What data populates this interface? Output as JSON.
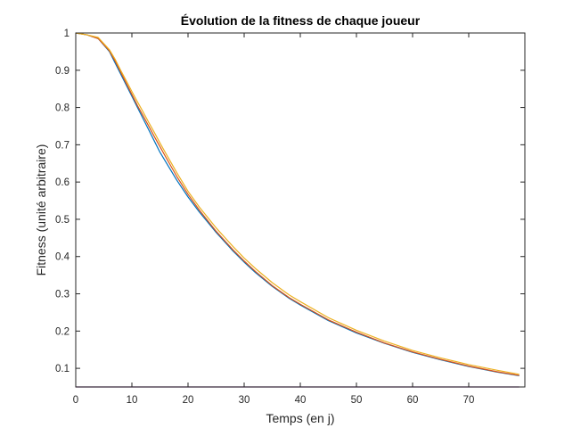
{
  "chart_data": {
    "type": "line",
    "title": "Évolution de la fitness de chaque joueur",
    "xlabel": "Temps (en j)",
    "ylabel": "Fitness (unité arbitraire)",
    "xlim": [
      0,
      80
    ],
    "ylim": [
      0.05,
      1
    ],
    "xticks": [
      "0",
      "10",
      "20",
      "30",
      "40",
      "50",
      "60",
      "70"
    ],
    "yticks": [
      "0.1",
      "0.2",
      "0.3",
      "0.4",
      "0.5",
      "0.6",
      "0.7",
      "0.8",
      "0.9",
      "1"
    ],
    "grid": false,
    "series": [
      {
        "color": "#0072BD",
        "x": [
          0,
          2,
          4,
          6,
          7,
          8,
          9,
          10,
          11,
          12,
          13,
          14,
          15,
          16,
          18,
          20,
          22,
          25,
          28,
          30,
          32,
          35,
          38,
          40,
          45,
          50,
          55,
          60,
          65,
          70,
          75,
          79
        ],
        "y": [
          1.0,
          0.995,
          0.985,
          0.95,
          0.92,
          0.89,
          0.86,
          0.83,
          0.8,
          0.77,
          0.74,
          0.71,
          0.68,
          0.655,
          0.605,
          0.56,
          0.52,
          0.465,
          0.415,
          0.385,
          0.357,
          0.32,
          0.288,
          0.27,
          0.228,
          0.195,
          0.167,
          0.143,
          0.123,
          0.105,
          0.09,
          0.08
        ]
      },
      {
        "color": "#D95319",
        "x": [
          0,
          2,
          4,
          6,
          7,
          8,
          9,
          10,
          11,
          12,
          13,
          14,
          15,
          16,
          18,
          20,
          22,
          25,
          28,
          30,
          32,
          35,
          38,
          40,
          45,
          50,
          55,
          60,
          65,
          70,
          75,
          79
        ],
        "y": [
          1.0,
          0.995,
          0.985,
          0.952,
          0.925,
          0.895,
          0.865,
          0.835,
          0.805,
          0.778,
          0.75,
          0.722,
          0.695,
          0.668,
          0.615,
          0.567,
          0.525,
          0.468,
          0.418,
          0.388,
          0.36,
          0.322,
          0.29,
          0.272,
          0.23,
          0.197,
          0.168,
          0.144,
          0.124,
          0.106,
          0.091,
          0.081
        ]
      },
      {
        "color": "#EDB120",
        "x": [
          0,
          2,
          4,
          6,
          7,
          8,
          9,
          10,
          11,
          12,
          13,
          14,
          15,
          16,
          18,
          20,
          22,
          25,
          28,
          30,
          32,
          35,
          38,
          40,
          45,
          50,
          55,
          60,
          65,
          70,
          75,
          79
        ],
        "y": [
          1.0,
          0.995,
          0.988,
          0.955,
          0.93,
          0.9,
          0.872,
          0.843,
          0.815,
          0.788,
          0.76,
          0.733,
          0.705,
          0.678,
          0.625,
          0.575,
          0.533,
          0.477,
          0.427,
          0.396,
          0.368,
          0.33,
          0.297,
          0.279,
          0.236,
          0.202,
          0.173,
          0.148,
          0.128,
          0.11,
          0.095,
          0.084
        ]
      },
      {
        "color": "#7E2F8E",
        "x": [
          0,
          79
        ],
        "y": [
          0.05,
          0.05
        ]
      }
    ]
  }
}
